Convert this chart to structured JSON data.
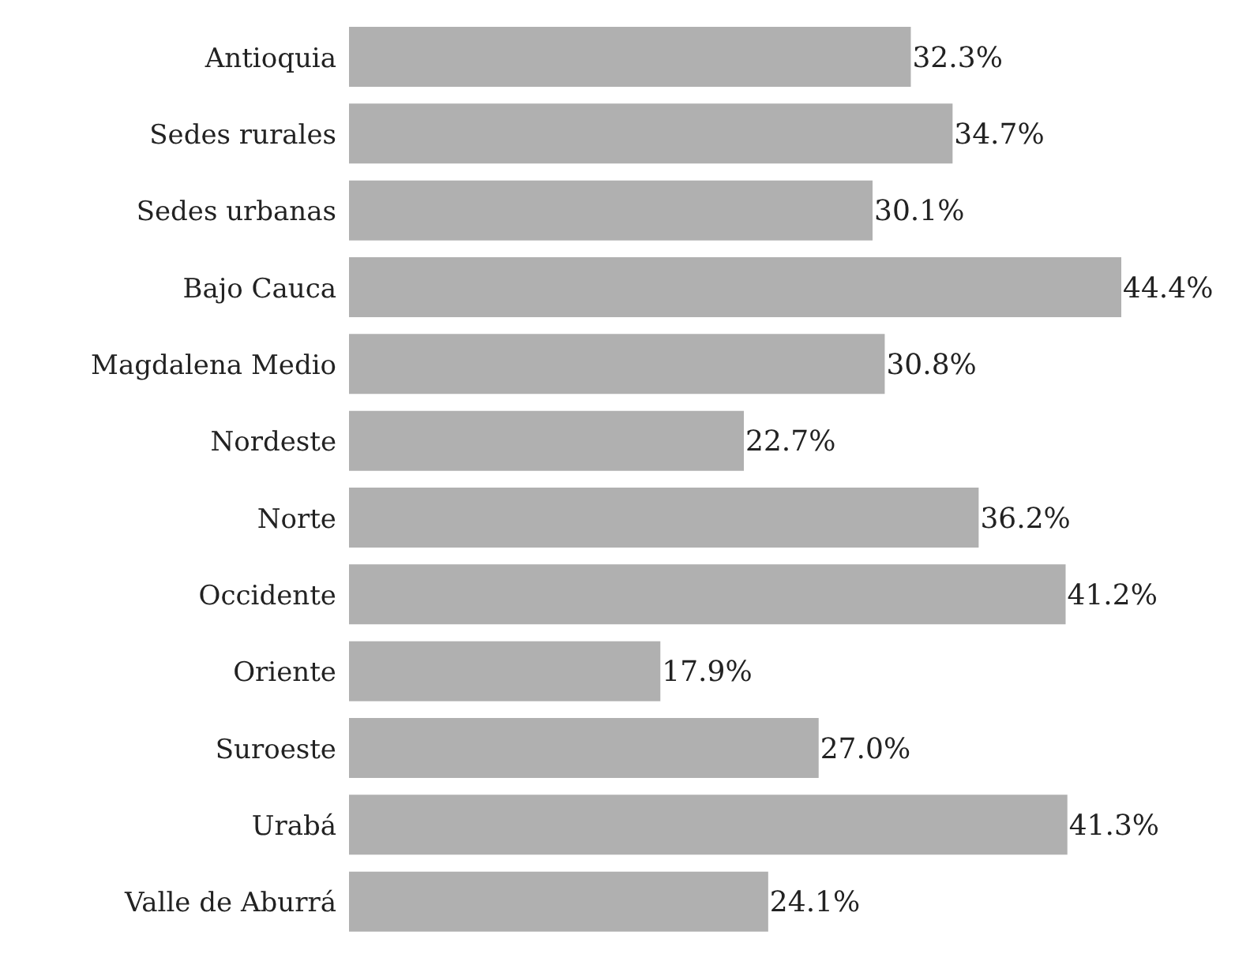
{
  "chart_data": {
    "type": "bar",
    "orientation": "horizontal",
    "categories": [
      "Antioquia",
      "Sedes rurales",
      "Sedes urbanas",
      "Bajo Cauca",
      "Magdalena Medio",
      "Nordeste",
      "Norte",
      "Occidente",
      "Oriente",
      "Suroeste",
      "Urabá",
      "Valle de Aburrá"
    ],
    "values": [
      32.3,
      34.7,
      30.1,
      44.4,
      30.8,
      22.7,
      36.2,
      41.2,
      17.9,
      27.0,
      41.3,
      24.1
    ],
    "value_labels": [
      "32.3%",
      "34.7%",
      "30.1%",
      "44.4%",
      "30.8%",
      "22.7%",
      "36.2%",
      "41.2%",
      "17.9%",
      "27.0%",
      "41.3%",
      "24.1%"
    ],
    "color": "#b0b0b0",
    "tick_labels": "y",
    "grid": false,
    "legend": false
  }
}
